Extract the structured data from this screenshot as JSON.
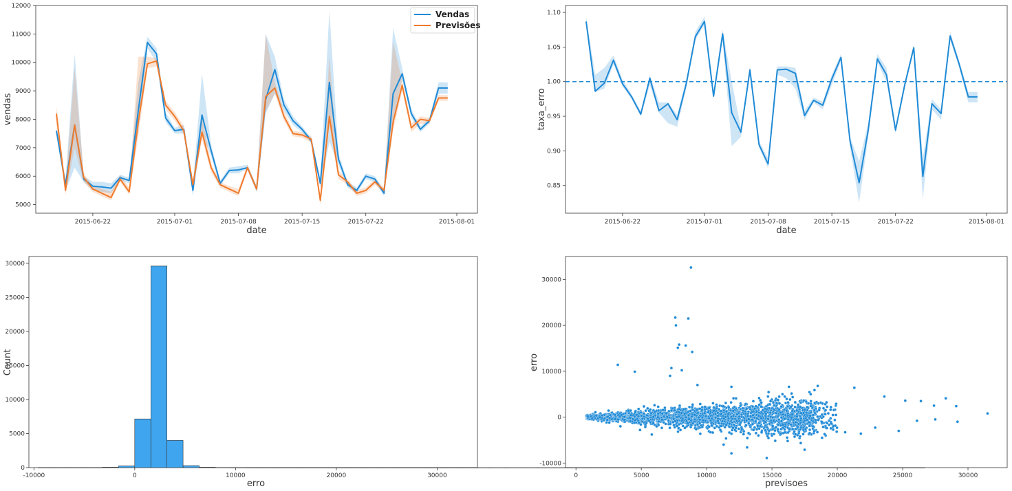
{
  "chart_data": [
    {
      "type": "line",
      "xlabel": "date",
      "ylabel": "vendas",
      "x_ticks": [
        "2015-06-22",
        "2015-07-01",
        "2015-07-08",
        "2015-07-15",
        "2015-07-22",
        "2015-08-01"
      ],
      "ylim": [
        4700,
        12000
      ],
      "y_ticks": [
        5000,
        6000,
        7000,
        8000,
        9000,
        10000,
        11000,
        12000
      ],
      "legend_position": "top-right",
      "x": [
        "2015-06-18",
        "2015-06-19",
        "2015-06-20",
        "2015-06-21",
        "2015-06-22",
        "2015-06-23",
        "2015-06-24",
        "2015-06-25",
        "2015-06-26",
        "2015-06-27",
        "2015-06-28",
        "2015-06-29",
        "2015-06-30",
        "2015-07-01",
        "2015-07-02",
        "2015-07-03",
        "2015-07-04",
        "2015-07-05",
        "2015-07-06",
        "2015-07-07",
        "2015-07-08",
        "2015-07-09",
        "2015-07-10",
        "2015-07-11",
        "2015-07-12",
        "2015-07-13",
        "2015-07-14",
        "2015-07-15",
        "2015-07-16",
        "2015-07-17",
        "2015-07-18",
        "2015-07-19",
        "2015-07-20",
        "2015-07-21",
        "2015-07-22",
        "2015-07-23",
        "2015-07-24",
        "2015-07-25",
        "2015-07-26",
        "2015-07-27",
        "2015-07-28",
        "2015-07-29",
        "2015-07-30",
        "2015-07-31"
      ],
      "series": [
        {
          "name": "Vendas",
          "color": "#1f8ad6",
          "values": [
            7600,
            5700,
            7800,
            5900,
            5650,
            5620,
            5580,
            5950,
            5850,
            8300,
            10700,
            10300,
            8050,
            7600,
            7650,
            5500,
            8150,
            6900,
            5750,
            6200,
            6220,
            6300,
            5550,
            8700,
            9750,
            8500,
            7950,
            7650,
            7250,
            5750,
            9300,
            6600,
            5700,
            5500,
            6000,
            5900,
            5400,
            8900,
            9600,
            8200,
            7650,
            7950,
            9100,
            9100
          ],
          "band_low": [
            7500,
            5500,
            6300,
            5800,
            5500,
            5450,
            5400,
            5850,
            5750,
            7600,
            10500,
            10000,
            7900,
            7500,
            7500,
            5300,
            7500,
            6700,
            5650,
            6100,
            6100,
            6250,
            5450,
            8200,
            8900,
            8300,
            7800,
            7550,
            7150,
            5600,
            7200,
            6400,
            5600,
            5400,
            5900,
            5800,
            5300,
            7900,
            9400,
            8050,
            7550,
            7850,
            8900,
            8900
          ],
          "band_high": [
            7700,
            5900,
            10300,
            6000,
            5800,
            5800,
            5750,
            6050,
            5950,
            9300,
            10900,
            10500,
            8250,
            7700,
            7800,
            5700,
            9600,
            7100,
            5850,
            6300,
            6350,
            6400,
            5650,
            11000,
            10200,
            8700,
            8100,
            7750,
            7350,
            5900,
            11800,
            6800,
            5800,
            5600,
            6100,
            6000,
            5500,
            11200,
            9800,
            8350,
            7750,
            8050,
            9300,
            9300
          ]
        },
        {
          "name": "Previsões",
          "color": "#f07b2c",
          "values": [
            8200,
            5500,
            7800,
            5950,
            5550,
            5400,
            5250,
            5900,
            5450,
            7900,
            9950,
            10050,
            8500,
            8100,
            7600,
            5700,
            7550,
            6300,
            5700,
            5550,
            5400,
            6300,
            5550,
            8800,
            9100,
            8100,
            7500,
            7450,
            7300,
            5150,
            8100,
            6050,
            5800,
            5400,
            5500,
            5800,
            5500,
            7900,
            9200,
            7700,
            8000,
            7950,
            8750,
            8750
          ],
          "band_low": [
            7800,
            5350,
            7000,
            5800,
            5450,
            5300,
            5150,
            5800,
            5350,
            7400,
            9800,
            9850,
            8350,
            7950,
            7450,
            5550,
            7300,
            6150,
            5600,
            5450,
            5300,
            6200,
            5450,
            8300,
            8900,
            7950,
            7400,
            7350,
            7200,
            5000,
            7800,
            5900,
            5700,
            5300,
            5400,
            5700,
            5400,
            7600,
            9000,
            7550,
            7850,
            7850,
            8650,
            8650
          ],
          "band_high": [
            8450,
            5650,
            9800,
            6100,
            5650,
            5550,
            5450,
            6050,
            5600,
            10200,
            10200,
            10150,
            8650,
            8250,
            7750,
            5850,
            8100,
            6450,
            5800,
            5650,
            5550,
            6400,
            5650,
            11000,
            9300,
            8300,
            7600,
            7550,
            7400,
            5300,
            10200,
            6200,
            5900,
            5500,
            5600,
            5900,
            5600,
            10700,
            9350,
            7850,
            8100,
            8050,
            8850,
            8850
          ]
        }
      ]
    },
    {
      "type": "line",
      "xlabel": "date",
      "ylabel": "taxa_erro",
      "x_ticks": [
        "2015-06-22",
        "2015-07-01",
        "2015-07-08",
        "2015-07-15",
        "2015-07-22",
        "2015-08-01"
      ],
      "ylim": [
        0.81,
        1.11
      ],
      "y_ticks": [
        0.85,
        0.9,
        0.95,
        1.0,
        1.05,
        1.1
      ],
      "reference_line": 1.0,
      "x": [
        "2015-06-18",
        "2015-06-19",
        "2015-06-20",
        "2015-06-21",
        "2015-06-22",
        "2015-06-23",
        "2015-06-24",
        "2015-06-25",
        "2015-06-26",
        "2015-06-27",
        "2015-06-28",
        "2015-06-29",
        "2015-06-30",
        "2015-07-01",
        "2015-07-02",
        "2015-07-03",
        "2015-07-04",
        "2015-07-05",
        "2015-07-06",
        "2015-07-07",
        "2015-07-08",
        "2015-07-09",
        "2015-07-10",
        "2015-07-11",
        "2015-07-12",
        "2015-07-13",
        "2015-07-14",
        "2015-07-15",
        "2015-07-16",
        "2015-07-17",
        "2015-07-18",
        "2015-07-19",
        "2015-07-20",
        "2015-07-21",
        "2015-07-22",
        "2015-07-23",
        "2015-07-24",
        "2015-07-25",
        "2015-07-26",
        "2015-07-27",
        "2015-07-28",
        "2015-07-29",
        "2015-07-30",
        "2015-07-31"
      ],
      "series": [
        {
          "color": "#1f8ad6",
          "values": [
            1.087,
            0.986,
            0.998,
            1.031,
            0.997,
            0.978,
            0.953,
            1.005,
            0.958,
            0.968,
            0.945,
            0.997,
            1.065,
            1.087,
            0.979,
            1.069,
            0.955,
            0.927,
            1.017,
            0.909,
            0.881,
            1.017,
            1.018,
            1.012,
            0.951,
            0.973,
            0.966,
            1.004,
            1.035,
            0.914,
            0.854,
            0.93,
            1.033,
            1.01,
            0.93,
            0.995,
            1.049,
            0.863,
            0.968,
            0.954,
            1.066,
            1.025,
            0.978,
            0.978
          ],
          "band_low": [
            1.08,
            0.985,
            0.99,
            1.025,
            0.993,
            0.975,
            0.95,
            0.995,
            0.955,
            0.94,
            0.935,
            0.99,
            1.06,
            1.082,
            0.976,
            1.06,
            0.907,
            0.92,
            1.01,
            0.905,
            0.875,
            1.01,
            1.005,
            0.99,
            0.945,
            0.97,
            0.96,
            0.995,
            1.03,
            0.905,
            0.825,
            0.92,
            1.028,
            1.0,
            0.925,
            0.99,
            1.045,
            0.83,
            0.96,
            0.945,
            1.06,
            1.02,
            0.97,
            0.97
          ],
          "band_high": [
            1.093,
            1.01,
            1.02,
            1.038,
            1.003,
            0.982,
            0.957,
            1.01,
            0.97,
            0.97,
            0.952,
            1.003,
            1.072,
            1.094,
            0.985,
            1.075,
            1.0,
            0.934,
            1.022,
            0.914,
            0.889,
            1.022,
            1.022,
            1.02,
            0.958,
            0.977,
            0.971,
            1.01,
            1.04,
            0.92,
            0.885,
            0.94,
            1.04,
            1.02,
            0.935,
            1.0,
            1.054,
            0.89,
            0.975,
            0.96,
            1.072,
            1.03,
            0.985,
            0.985
          ]
        }
      ]
    },
    {
      "type": "bar",
      "subtype": "histogram",
      "xlabel": "erro",
      "ylabel": "Count",
      "xlim": [
        -10500,
        34000
      ],
      "ylim": [
        0,
        31000
      ],
      "x_ticks": [
        -10000,
        0,
        10000,
        20000,
        30000
      ],
      "y_ticks": [
        0,
        5000,
        10000,
        15000,
        20000,
        25000,
        30000
      ],
      "bin_width": 1600,
      "bin_start": -9600,
      "values": [
        10,
        10,
        10,
        15,
        60,
        250,
        7150,
        29600,
        4000,
        290,
        60,
        25,
        10,
        5,
        5,
        5,
        5,
        5,
        5,
        3,
        3,
        3,
        3,
        3,
        3,
        2,
        2,
        2,
        2,
        2,
        2,
        2,
        2,
        2,
        2,
        2,
        2,
        1,
        1,
        1,
        1,
        1,
        1,
        1,
        1,
        1,
        1,
        1,
        1,
        1,
        1,
        1,
        1,
        1,
        1
      ],
      "color": "#3fa5ee"
    },
    {
      "type": "scatter",
      "xlabel": "previsoes",
      "ylabel": "erro",
      "xlim": [
        -800,
        33000
      ],
      "ylim": [
        -11000,
        35000
      ],
      "x_ticks": [
        0,
        5000,
        10000,
        15000,
        20000,
        25000,
        30000
      ],
      "y_ticks": [
        -10000,
        0,
        10000,
        20000,
        30000
      ],
      "color": "#1f8ad6",
      "points": [
        [
          8800,
          32600
        ],
        [
          7600,
          21700
        ],
        [
          8600,
          21500
        ],
        [
          7650,
          20000
        ],
        [
          7900,
          15800
        ],
        [
          8400,
          15600
        ],
        [
          7800,
          15100
        ],
        [
          8900,
          14200
        ],
        [
          3200,
          11400
        ],
        [
          7300,
          10700
        ],
        [
          8100,
          10200
        ],
        [
          4500,
          9900
        ],
        [
          7200,
          9000
        ],
        [
          9300,
          7000
        ],
        [
          11900,
          6600
        ],
        [
          16300,
          6600
        ],
        [
          18500,
          6800
        ],
        [
          21300,
          6400
        ],
        [
          23600,
          4500
        ],
        [
          25200,
          3600
        ],
        [
          26400,
          3500
        ],
        [
          27400,
          2500
        ],
        [
          28300,
          4100
        ],
        [
          29100,
          2400
        ],
        [
          31500,
          800
        ],
        [
          29200,
          -1000
        ],
        [
          27500,
          -500
        ],
        [
          26100,
          -800
        ],
        [
          24700,
          -3000
        ],
        [
          22900,
          -2300
        ],
        [
          21800,
          -3600
        ],
        [
          20600,
          -3300
        ],
        [
          19200,
          -2400
        ],
        [
          17500,
          -7100
        ],
        [
          16200,
          -5200
        ],
        [
          15000,
          -4000
        ],
        [
          14600,
          -8900
        ],
        [
          13100,
          -6600
        ],
        [
          11900,
          -7900
        ],
        [
          11300,
          -6000
        ],
        [
          10300,
          -3300
        ],
        [
          9200,
          -2600
        ],
        [
          8000,
          -2800
        ],
        [
          5800,
          -3800
        ],
        [
          4900,
          -2800
        ],
        [
          3400,
          -2000
        ]
      ]
    }
  ]
}
